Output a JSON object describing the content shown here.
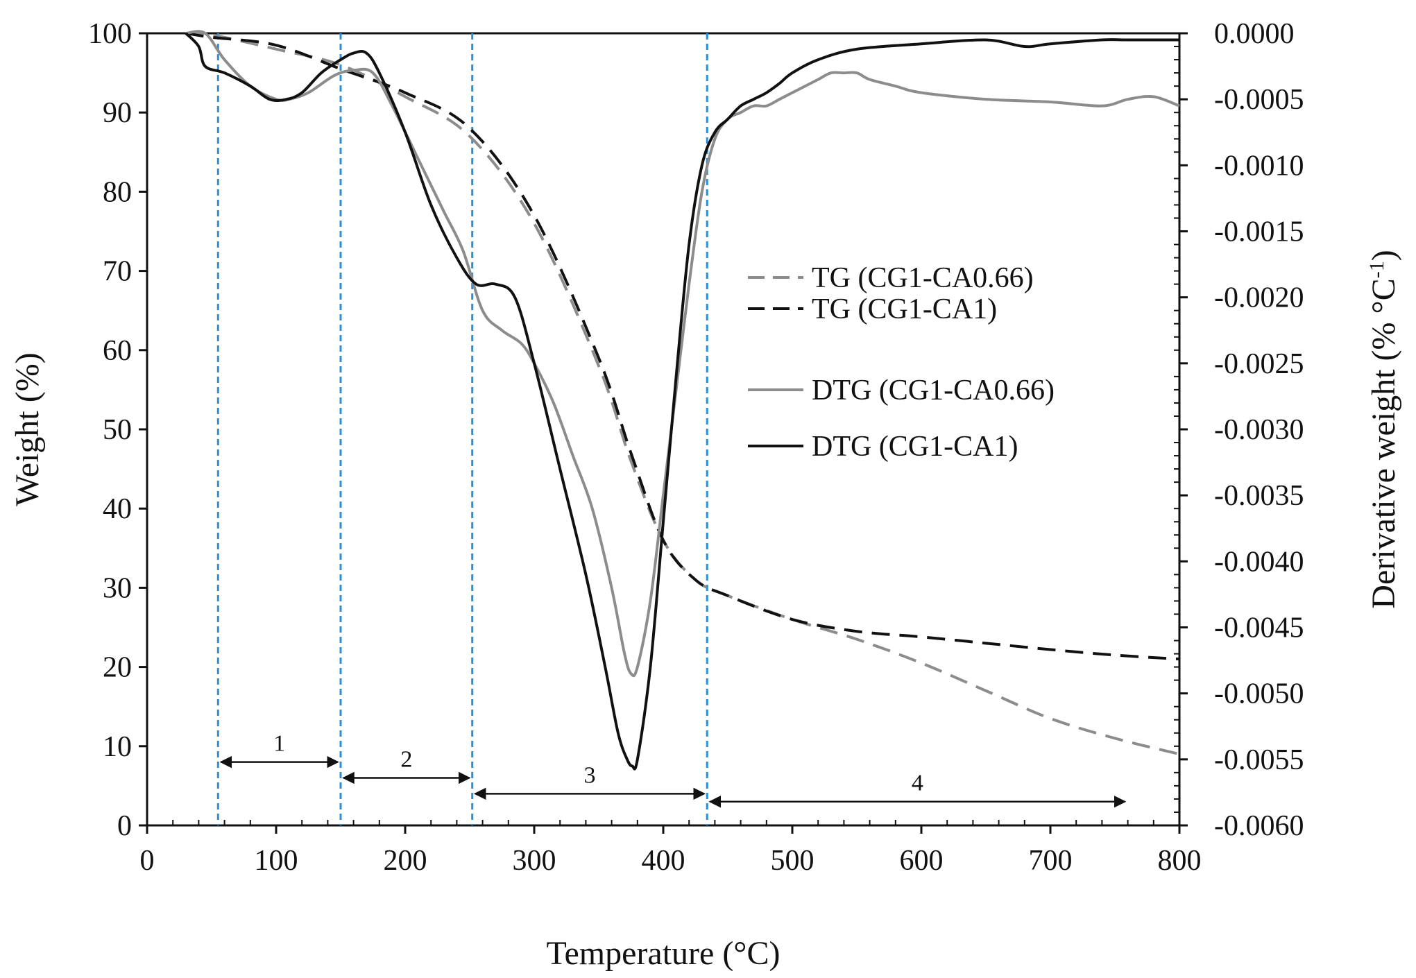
{
  "chart_data": {
    "type": "line",
    "title": "",
    "xlabel": "Temperature (°C)",
    "ylabel": "Weight (%)",
    "y2label": "Derivative weight (% °C-1)",
    "xlim": [
      0,
      800
    ],
    "ylim": [
      0,
      100
    ],
    "y2lim": [
      -0.006,
      0.0
    ],
    "xticks": [
      "0",
      "100",
      "200",
      "300",
      "400",
      "500",
      "600",
      "700",
      "800"
    ],
    "yticks": [
      "0",
      "10",
      "20",
      "30",
      "40",
      "50",
      "60",
      "70",
      "80",
      "90",
      "100"
    ],
    "y2ticks": [
      "-0.0060",
      "-0.0055",
      "-0.0050",
      "-0.0045",
      "-0.0040",
      "-0.0035",
      "-0.0030",
      "-0.0025",
      "-0.0020",
      "-0.0015",
      "-0.0010",
      "-0.0005",
      "0.0000"
    ],
    "grid": false,
    "legend_position": "center-right",
    "series": [
      {
        "name": "TG (CG1-CA0.66)",
        "axis": "left",
        "style": "dashed",
        "color": "#8c8c8c",
        "x": [
          30,
          50,
          100,
          150,
          200,
          250,
          300,
          350,
          375,
          400,
          425,
          450,
          500,
          550,
          600,
          650,
          700,
          750,
          800
        ],
        "y": [
          100,
          99.8,
          98,
          96,
          92,
          87,
          76,
          58,
          46,
          36,
          31,
          29,
          26,
          23.5,
          20.5,
          17,
          13.5,
          11,
          9
        ]
      },
      {
        "name": "TG (CG1-CA1)",
        "axis": "left",
        "style": "dashed",
        "color": "#111111",
        "x": [
          30,
          50,
          100,
          150,
          200,
          250,
          300,
          350,
          375,
          400,
          425,
          450,
          500,
          550,
          600,
          650,
          700,
          750,
          800
        ],
        "y": [
          100,
          99.5,
          98.5,
          95.5,
          92.5,
          88,
          77,
          59,
          47,
          36,
          31,
          29,
          26,
          24.5,
          23.8,
          23,
          22.2,
          21.5,
          21
        ]
      },
      {
        "name": "DTG (CG1-CA0.66)",
        "axis": "right",
        "style": "solid",
        "color": "#8c8c8c",
        "x": [
          30,
          45,
          60,
          80,
          100,
          110,
          125,
          145,
          160,
          175,
          190,
          210,
          230,
          245,
          260,
          275,
          290,
          300,
          315,
          330,
          345,
          360,
          370,
          375,
          380,
          390,
          400,
          410,
          420,
          430,
          440,
          450,
          460,
          470,
          480,
          490,
          500,
          510,
          520,
          530,
          540,
          550,
          560,
          580,
          600,
          650,
          700,
          740,
          760,
          780,
          800
        ],
        "y": [
          0.0,
          0.0,
          -0.0002,
          -0.0004,
          -0.0005,
          -0.0005,
          -0.00045,
          -0.00032,
          -0.00028,
          -0.0003,
          -0.00055,
          -0.00095,
          -0.00135,
          -0.00165,
          -0.0021,
          -0.00225,
          -0.00235,
          -0.0025,
          -0.0028,
          -0.0032,
          -0.0036,
          -0.0042,
          -0.0047,
          -0.00485,
          -0.0048,
          -0.0043,
          -0.0035,
          -0.0027,
          -0.0019,
          -0.0012,
          -0.0008,
          -0.00065,
          -0.0006,
          -0.00055,
          -0.00055,
          -0.0005,
          -0.00045,
          -0.0004,
          -0.00035,
          -0.0003,
          -0.0003,
          -0.0003,
          -0.00035,
          -0.0004,
          -0.00045,
          -0.0005,
          -0.00052,
          -0.00055,
          -0.0005,
          -0.00048,
          -0.00055
        ]
      },
      {
        "name": "DTG (CG1-CA1)",
        "axis": "right",
        "style": "solid",
        "color": "#111111",
        "x": [
          30,
          40,
          45,
          60,
          80,
          95,
          108,
          120,
          135,
          150,
          160,
          170,
          180,
          200,
          220,
          240,
          255,
          270,
          285,
          300,
          320,
          340,
          355,
          365,
          372,
          376,
          380,
          390,
          400,
          410,
          420,
          430,
          440,
          450,
          460,
          470,
          480,
          490,
          500,
          520,
          550,
          600,
          650,
          680,
          700,
          740,
          760,
          800
        ],
        "y": [
          0.0,
          -0.0001,
          -0.00025,
          -0.0003,
          -0.0004,
          -0.0005,
          -0.0005,
          -0.00045,
          -0.0003,
          -0.0002,
          -0.00015,
          -0.00015,
          -0.0003,
          -0.00075,
          -0.0013,
          -0.0017,
          -0.0019,
          -0.0019,
          -0.002,
          -0.0025,
          -0.0033,
          -0.0041,
          -0.0048,
          -0.0053,
          -0.0055,
          -0.00555,
          -0.0055,
          -0.0048,
          -0.0037,
          -0.0026,
          -0.0016,
          -0.001,
          -0.00075,
          -0.00065,
          -0.00055,
          -0.0005,
          -0.00045,
          -0.00038,
          -0.0003,
          -0.0002,
          -0.00012,
          -8e-05,
          -5e-05,
          -0.0001,
          -8e-05,
          -5e-05,
          -5e-05,
          -5e-05
        ]
      }
    ],
    "region_lines": [
      {
        "x": 55
      },
      {
        "x": 150
      },
      {
        "x": 252
      },
      {
        "x": 434
      }
    ],
    "regions": [
      {
        "label": "1",
        "x_start": 55,
        "x_end": 150,
        "y": 8
      },
      {
        "label": "2",
        "x_start": 150,
        "x_end": 252,
        "y": 6
      },
      {
        "label": "3",
        "x_start": 252,
        "x_end": 434,
        "y": 4
      },
      {
        "label": "4",
        "x_start": 434,
        "x_end": 760,
        "y": 3
      }
    ]
  }
}
